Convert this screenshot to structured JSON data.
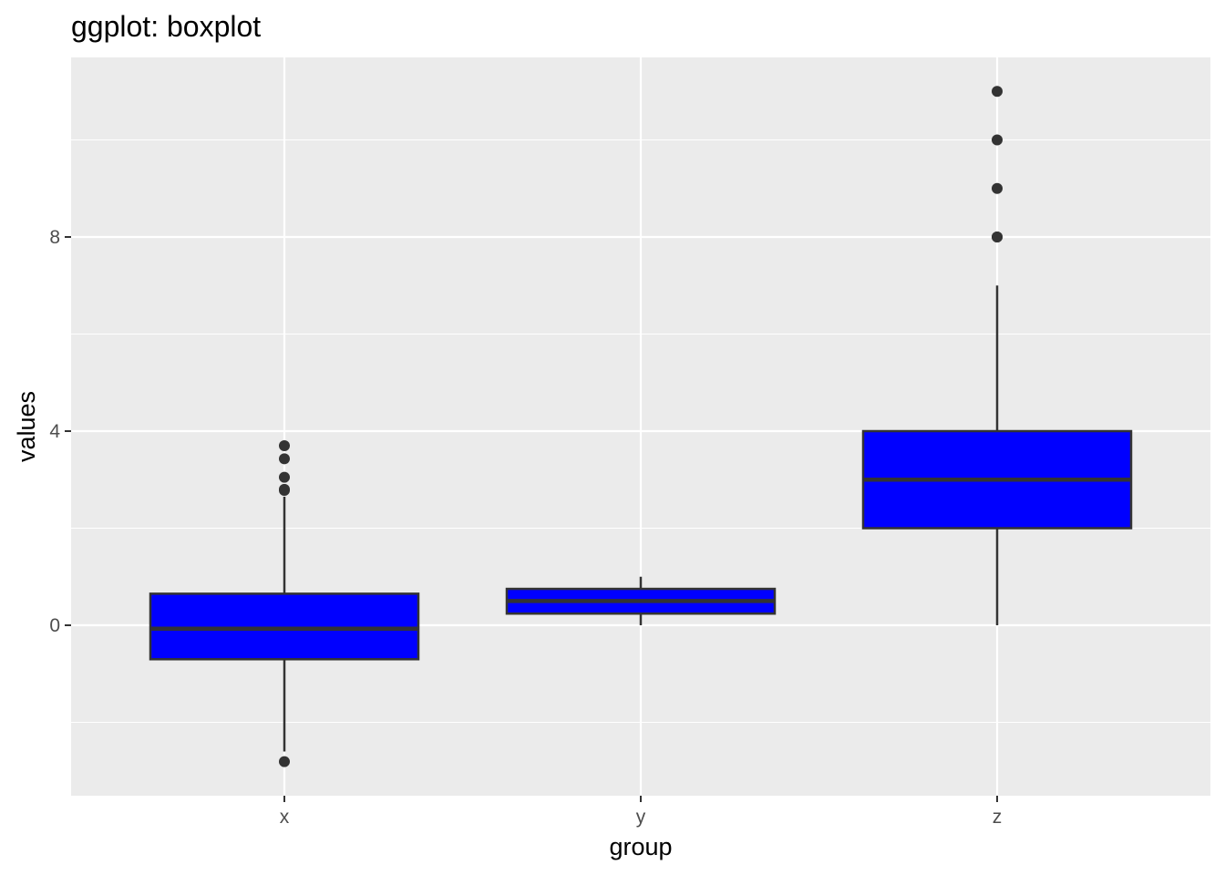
{
  "chart_data": {
    "type": "boxplot",
    "title": "ggplot: boxplot",
    "xlabel": "group",
    "ylabel": "values",
    "categories": [
      "x",
      "y",
      "z"
    ],
    "y_ticks": [
      0,
      4,
      8
    ],
    "y_tick_labels": [
      "0",
      "4",
      "8"
    ],
    "ylim": [
      -3.5,
      11.7
    ],
    "grid": true,
    "boxes": [
      {
        "category": "x",
        "whisker_low": -2.6,
        "q1": -0.7,
        "median": -0.07,
        "q3": 0.65,
        "whisker_high": 2.65,
        "outliers": [
          -2.81,
          2.78,
          2.8,
          3.05,
          3.43,
          3.7
        ]
      },
      {
        "category": "y",
        "whisker_low": 0.0,
        "q1": 0.24,
        "median": 0.5,
        "q3": 0.75,
        "whisker_high": 1.0,
        "outliers": []
      },
      {
        "category": "z",
        "whisker_low": 0.0,
        "q1": 2.0,
        "median": 3.0,
        "q3": 4.0,
        "whisker_high": 7.0,
        "outliers": [
          8,
          8,
          9,
          10,
          11
        ]
      }
    ],
    "colors": {
      "panel_background": "#EBEBEB",
      "grid_major": "#FFFFFF",
      "grid_minor": "#F5F5F5",
      "box_fill": "#0000FF",
      "box_outline": "#333333",
      "outlier": "#333333",
      "tick_mark": "#333333"
    }
  }
}
